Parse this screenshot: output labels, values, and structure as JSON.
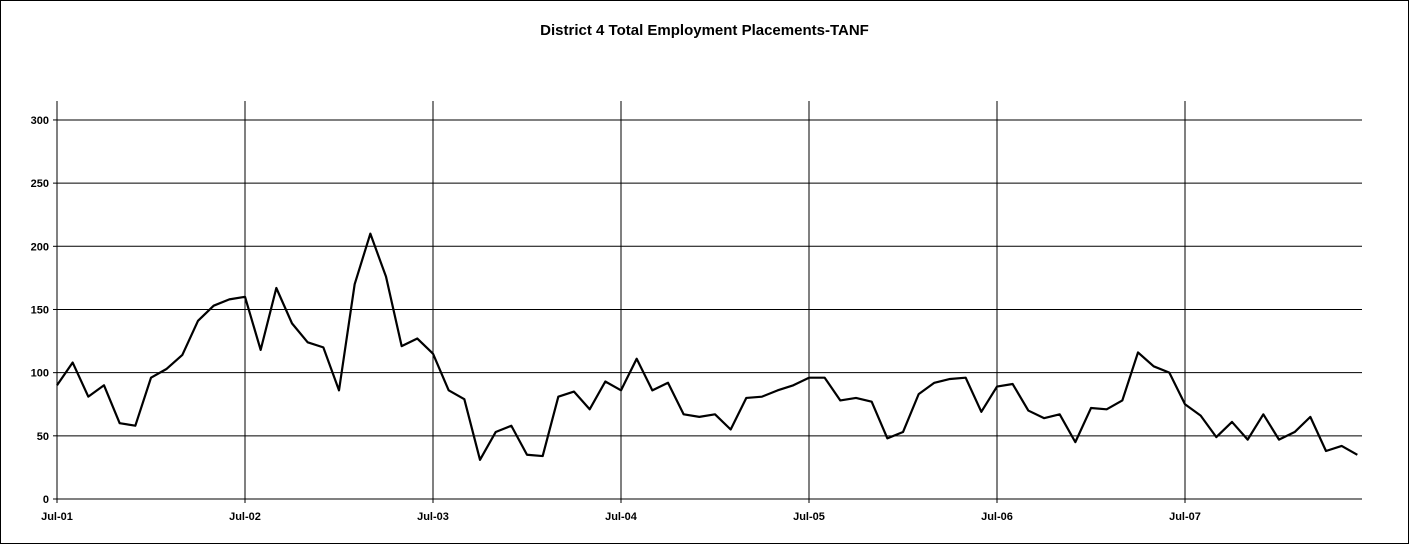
{
  "chart_data": {
    "type": "line",
    "title": "District 4 Total Employment Placements-TANF",
    "xlabel": "",
    "ylabel": "",
    "ylim": [
      0,
      300
    ],
    "y_ticks": [
      0,
      50,
      100,
      150,
      200,
      250,
      300
    ],
    "x_tick_labels": [
      "Jul-01",
      "Jul-02",
      "Jul-03",
      "Jul-04",
      "Jul-05",
      "Jul-06",
      "Jul-07"
    ],
    "grid": true,
    "legend": "none",
    "line_color": "#000000",
    "x": [
      "2001-07",
      "2001-08",
      "2001-09",
      "2001-10",
      "2001-11",
      "2001-12",
      "2002-01",
      "2002-02",
      "2002-03",
      "2002-04",
      "2002-05",
      "2002-06",
      "2002-07",
      "2002-08",
      "2002-09",
      "2002-10",
      "2002-11",
      "2002-12",
      "2003-01",
      "2003-02",
      "2003-03",
      "2003-04",
      "2003-05",
      "2003-06",
      "2003-07",
      "2003-08",
      "2003-09",
      "2003-10",
      "2003-11",
      "2003-12",
      "2004-01",
      "2004-02",
      "2004-03",
      "2004-04",
      "2004-05",
      "2004-06",
      "2004-07",
      "2004-08",
      "2004-09",
      "2004-10",
      "2004-11",
      "2004-12",
      "2005-01",
      "2005-02",
      "2005-03",
      "2005-04",
      "2005-05",
      "2005-06",
      "2005-07",
      "2005-08",
      "2005-09",
      "2005-10",
      "2005-11",
      "2005-12",
      "2006-01",
      "2006-02",
      "2006-03",
      "2006-04",
      "2006-05",
      "2006-06",
      "2006-07",
      "2006-08",
      "2006-09",
      "2006-10",
      "2006-11",
      "2006-12",
      "2007-01",
      "2007-02",
      "2007-03",
      "2007-04",
      "2007-05",
      "2007-06",
      "2007-07",
      "2007-08",
      "2007-09",
      "2007-10",
      "2007-11",
      "2007-12",
      "2008-01",
      "2008-02",
      "2008-03",
      "2008-04",
      "2008-05",
      "2008-06"
    ],
    "values": [
      90,
      108,
      81,
      90,
      60,
      58,
      96,
      103,
      114,
      141,
      153,
      158,
      160,
      118,
      167,
      139,
      124,
      120,
      86,
      170,
      210,
      176,
      121,
      127,
      115,
      86,
      79,
      31,
      53,
      58,
      35,
      34,
      81,
      85,
      71,
      93,
      86,
      111,
      86,
      92,
      67,
      65,
      67,
      55,
      80,
      81,
      86,
      90,
      96,
      96,
      78,
      80,
      77,
      48,
      53,
      83,
      92,
      95,
      96,
      69,
      89,
      91,
      70,
      64,
      67,
      45,
      72,
      71,
      78,
      116,
      105,
      100,
      75,
      66,
      49,
      61,
      47,
      67,
      47,
      53,
      65,
      38,
      42,
      35
    ]
  }
}
